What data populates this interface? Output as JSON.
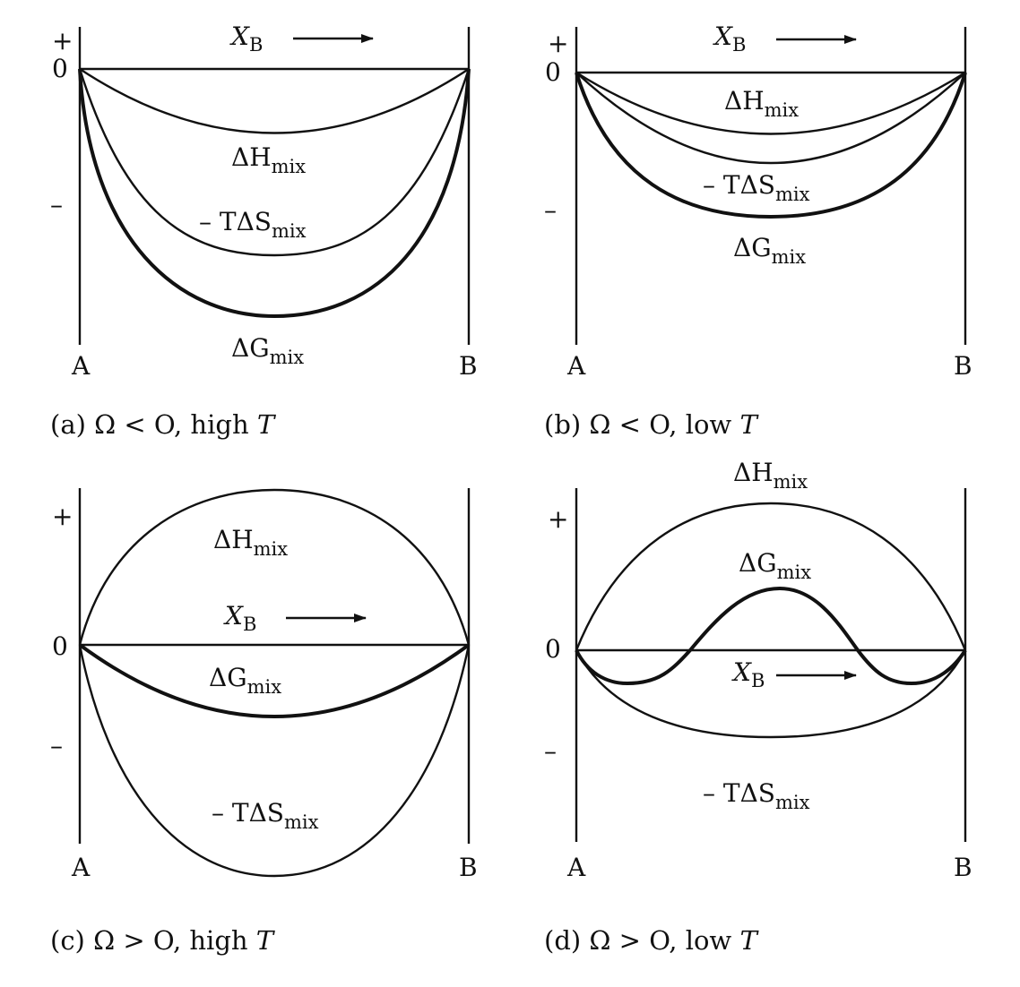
{
  "panels": [
    {
      "id": "a",
      "caption": "(a) Ω < O, high T",
      "caption_prefix": "(a) Ω < O, high ",
      "caption_T": "T",
      "y_ticks": {
        "plus": "+",
        "zero": "0",
        "minus": "–"
      },
      "x_left": "A",
      "x_right": "B",
      "xb": "X",
      "xb_sub": "B",
      "dH": "ΔH",
      "dG": "ΔG",
      "TdS_prefix": "– T",
      "TdS": "ΔS",
      "mix": "mix"
    },
    {
      "id": "b",
      "caption_prefix": "(b) Ω < O, low ",
      "caption_T": "T",
      "y_ticks": {
        "plus": "+",
        "zero": "0",
        "minus": "–"
      },
      "x_left": "A",
      "x_right": "B",
      "xb": "X",
      "xb_sub": "B",
      "dH": "ΔH",
      "dG": "ΔG",
      "TdS_prefix": "– T",
      "TdS": "ΔS",
      "mix": "mix"
    },
    {
      "id": "c",
      "caption_prefix": "(c) Ω > O, high ",
      "caption_T": "T",
      "y_ticks": {
        "plus": "+",
        "zero": "0",
        "minus": "–"
      },
      "x_left": "A",
      "x_right": "B",
      "xb": "X",
      "xb_sub": "B",
      "dH": "ΔH",
      "dG": "ΔG",
      "TdS_prefix": "– T",
      "TdS": "ΔS",
      "mix": "mix"
    },
    {
      "id": "d",
      "caption_prefix": "(d) Ω > O, low ",
      "caption_T": "T",
      "y_ticks": {
        "plus": "+",
        "zero": "0",
        "minus": "–"
      },
      "x_left": "A",
      "x_right": "B",
      "xb": "X",
      "xb_sub": "B",
      "dH": "ΔH",
      "dG": "ΔG",
      "TdS_prefix": "– T",
      "TdS": "ΔS",
      "mix": "mix"
    }
  ],
  "colors": {
    "ink": "#111111",
    "background": "#ffffff"
  }
}
